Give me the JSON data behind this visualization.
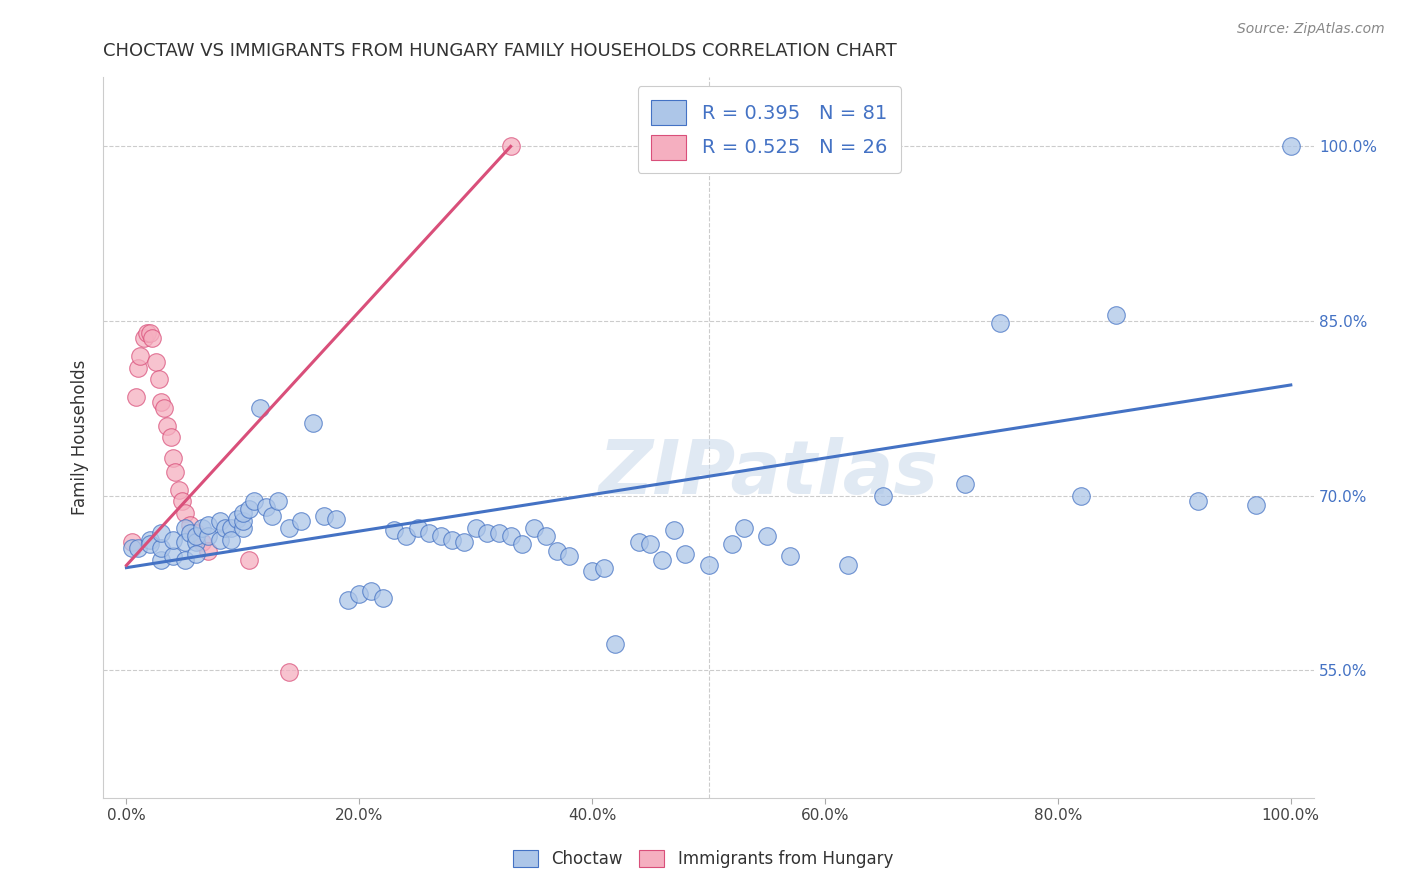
{
  "title": "CHOCTAW VS IMMIGRANTS FROM HUNGARY FAMILY HOUSEHOLDS CORRELATION CHART",
  "source": "Source: ZipAtlas.com",
  "ylabel": "Family Households",
  "x_ticks_labels": [
    "0.0%",
    "20.0%",
    "40.0%",
    "60.0%",
    "80.0%",
    "100.0%"
  ],
  "x_tick_vals": [
    0.0,
    0.2,
    0.4,
    0.6,
    0.8,
    1.0
  ],
  "y_ticks_right_labels": [
    "55.0%",
    "70.0%",
    "85.0%",
    "100.0%"
  ],
  "y_tick_vals_right": [
    0.55,
    0.7,
    0.85,
    1.0
  ],
  "xlim": [
    -0.02,
    1.02
  ],
  "ylim": [
    0.44,
    1.06
  ],
  "legend_r": [
    "R = 0.395",
    "R = 0.525"
  ],
  "legend_n": [
    "N = 81",
    "N = 26"
  ],
  "choctaw_color": "#adc6e8",
  "hungary_color": "#f5afc0",
  "choctaw_line_color": "#4472c4",
  "hungary_line_color": "#d94f7a",
  "watermark": "ZIPatlas",
  "choctaw_x": [
    0.005,
    0.01,
    0.02,
    0.02,
    0.03,
    0.03,
    0.03,
    0.04,
    0.04,
    0.05,
    0.05,
    0.05,
    0.055,
    0.06,
    0.06,
    0.06,
    0.065,
    0.07,
    0.07,
    0.08,
    0.08,
    0.085,
    0.09,
    0.09,
    0.095,
    0.1,
    0.1,
    0.1,
    0.105,
    0.11,
    0.115,
    0.12,
    0.125,
    0.13,
    0.14,
    0.15,
    0.16,
    0.17,
    0.18,
    0.19,
    0.2,
    0.21,
    0.22,
    0.23,
    0.24,
    0.25,
    0.26,
    0.27,
    0.28,
    0.29,
    0.3,
    0.31,
    0.32,
    0.33,
    0.34,
    0.35,
    0.36,
    0.37,
    0.38,
    0.4,
    0.41,
    0.42,
    0.44,
    0.45,
    0.46,
    0.47,
    0.48,
    0.5,
    0.52,
    0.53,
    0.55,
    0.57,
    0.62,
    0.65,
    0.72,
    0.75,
    0.82,
    0.85,
    0.92,
    0.97,
    1.0
  ],
  "choctaw_y": [
    0.655,
    0.655,
    0.662,
    0.658,
    0.645,
    0.655,
    0.668,
    0.648,
    0.662,
    0.672,
    0.66,
    0.645,
    0.668,
    0.66,
    0.65,
    0.665,
    0.672,
    0.665,
    0.675,
    0.678,
    0.662,
    0.672,
    0.672,
    0.662,
    0.68,
    0.672,
    0.678,
    0.685,
    0.688,
    0.695,
    0.775,
    0.69,
    0.682,
    0.695,
    0.672,
    0.678,
    0.762,
    0.682,
    0.68,
    0.61,
    0.615,
    0.618,
    0.612,
    0.67,
    0.665,
    0.672,
    0.668,
    0.665,
    0.662,
    0.66,
    0.672,
    0.668,
    0.668,
    0.665,
    0.658,
    0.672,
    0.665,
    0.652,
    0.648,
    0.635,
    0.638,
    0.572,
    0.66,
    0.658,
    0.645,
    0.67,
    0.65,
    0.64,
    0.658,
    0.672,
    0.665,
    0.648,
    0.64,
    0.7,
    0.71,
    0.848,
    0.7,
    0.855,
    0.695,
    0.692,
    1.0
  ],
  "hungary_x": [
    0.005,
    0.008,
    0.01,
    0.012,
    0.015,
    0.018,
    0.02,
    0.022,
    0.025,
    0.028,
    0.03,
    0.032,
    0.035,
    0.038,
    0.04,
    0.042,
    0.045,
    0.048,
    0.05,
    0.055,
    0.06,
    0.065,
    0.07,
    0.105,
    0.14,
    0.33
  ],
  "hungary_y": [
    0.66,
    0.785,
    0.81,
    0.82,
    0.835,
    0.84,
    0.84,
    0.835,
    0.815,
    0.8,
    0.78,
    0.775,
    0.76,
    0.75,
    0.732,
    0.72,
    0.705,
    0.695,
    0.685,
    0.675,
    0.668,
    0.66,
    0.652,
    0.645,
    0.548,
    1.0
  ],
  "hungary_line_x": [
    0.0,
    0.33
  ],
  "hungary_line_y": [
    0.64,
    1.0
  ],
  "choctaw_line_x": [
    0.0,
    1.0
  ],
  "choctaw_line_y": [
    0.638,
    0.795
  ]
}
